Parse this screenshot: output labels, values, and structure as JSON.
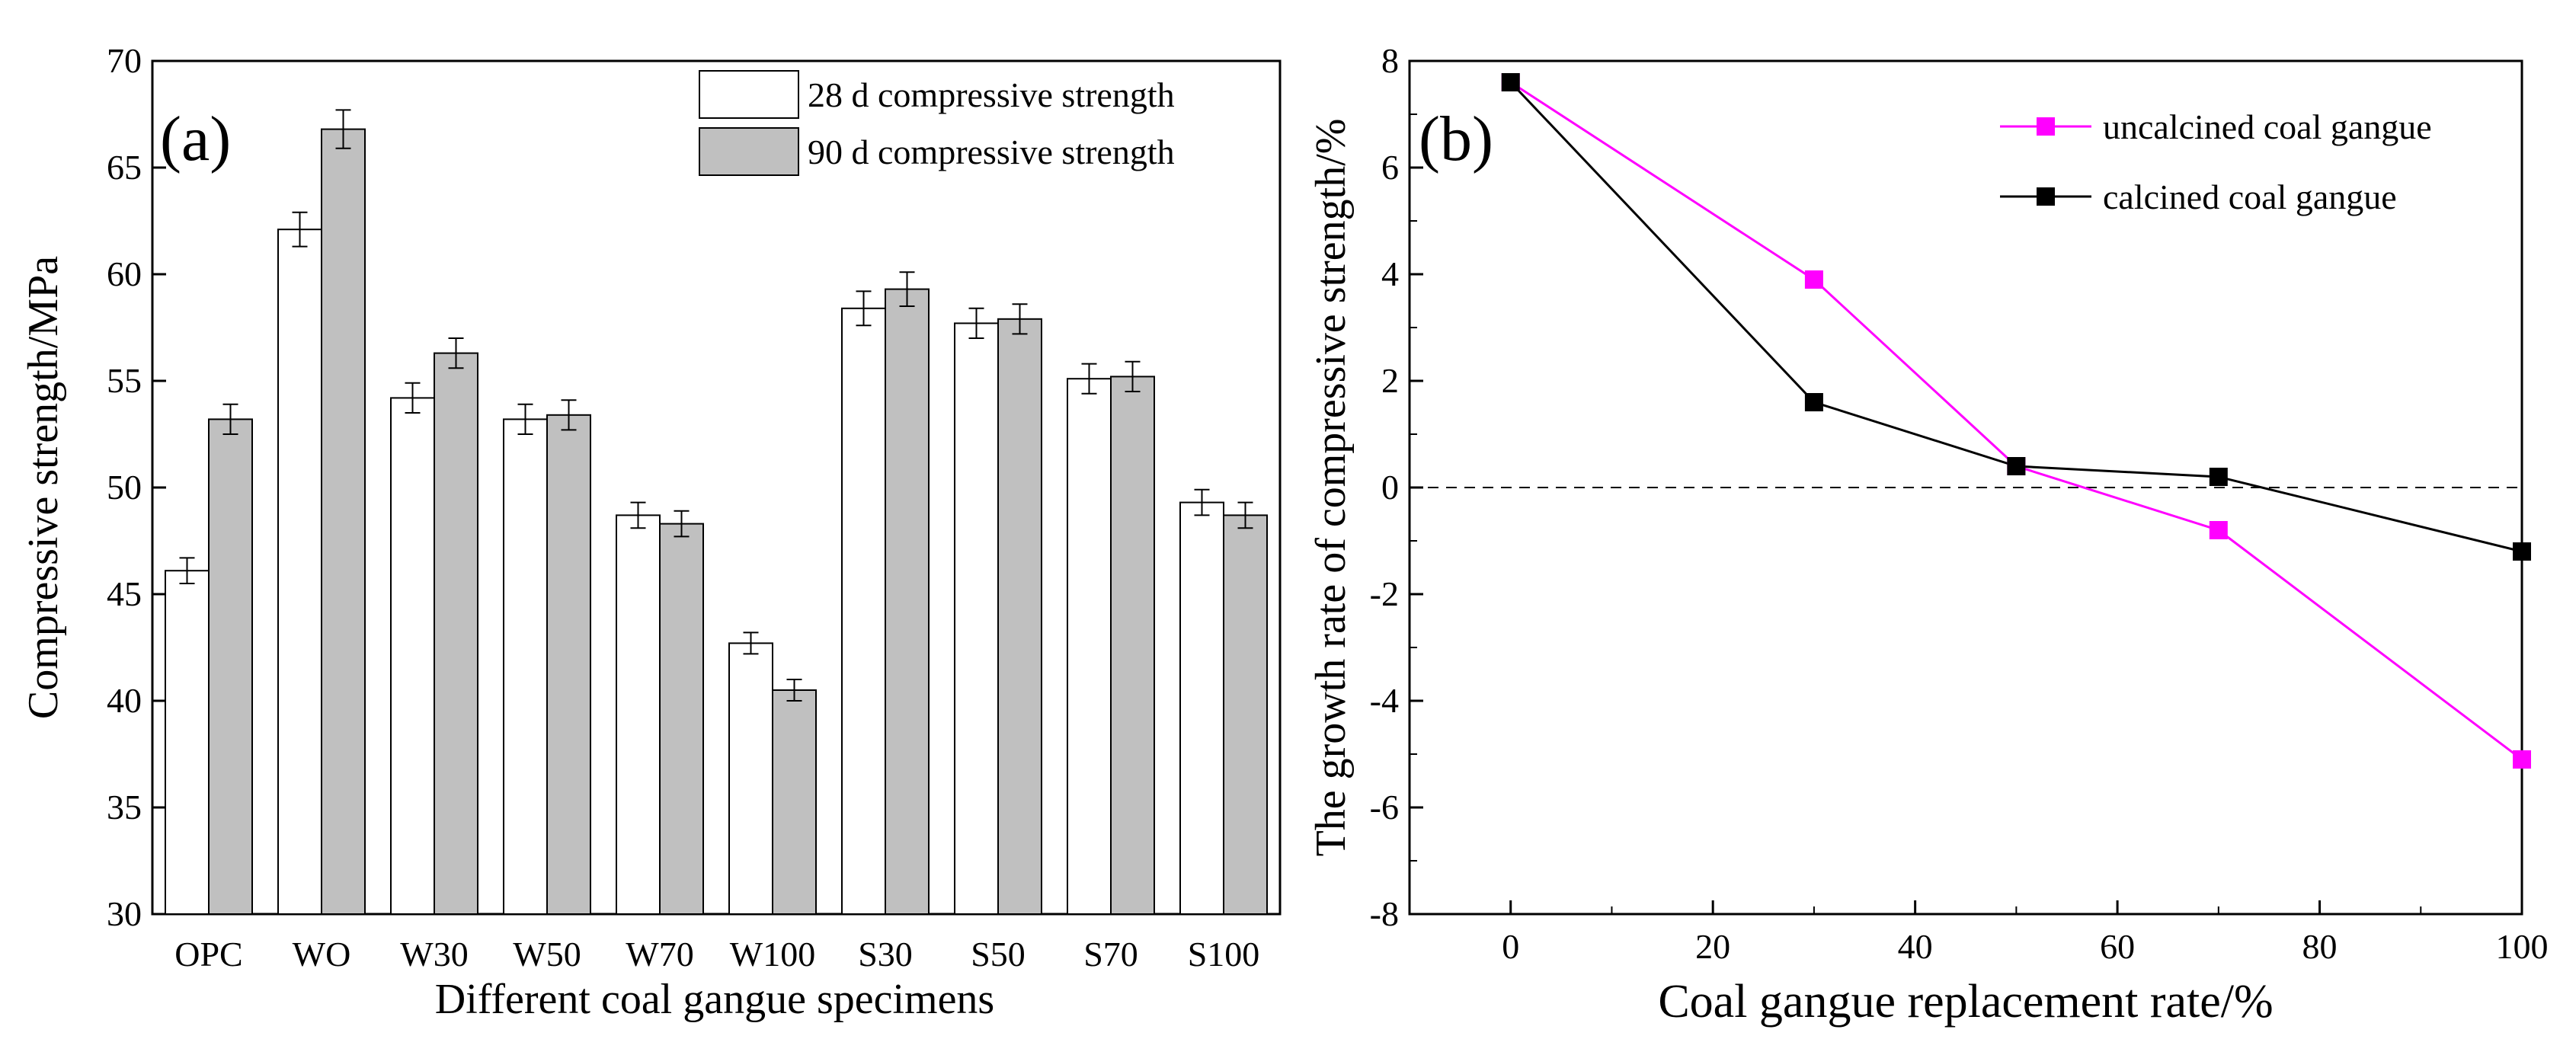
{
  "charts": {
    "a": {
      "panel_label": "(a)",
      "xlabel": "Different coal gangue specimens",
      "ylabel": "Compressive strength/MPa",
      "legend": [
        "28 d compressive strength",
        "90 d compressive strength"
      ]
    },
    "b": {
      "panel_label": "(b)",
      "xlabel": "Coal gangue replacement rate/%",
      "ylabel": "The growth rate of compressive strength/%",
      "legend": [
        "uncalcined coal gangue",
        "calcined coal gangue"
      ]
    }
  },
  "chart_data": [
    {
      "type": "bar",
      "panel": "(a)",
      "xlabel": "Different coal gangue specimens",
      "ylabel": "Compressive strength/MPa",
      "categories": [
        "OPC",
        "WO",
        "W30",
        "W50",
        "W70",
        "W100",
        "S30",
        "S50",
        "S70",
        "S100"
      ],
      "series": [
        {
          "name": "28 d compressive strength",
          "color": "#ffffff",
          "values": [
            46.1,
            62.1,
            54.2,
            53.2,
            48.7,
            42.7,
            58.4,
            57.7,
            55.1,
            49.3
          ],
          "errors": [
            0.6,
            0.8,
            0.7,
            0.7,
            0.6,
            0.5,
            0.8,
            0.7,
            0.7,
            0.6
          ]
        },
        {
          "name": "90 d compressive strength",
          "color": "#c0c0c0",
          "values": [
            53.2,
            66.8,
            56.3,
            53.4,
            48.3,
            40.5,
            59.3,
            57.9,
            55.2,
            48.7
          ],
          "errors": [
            0.7,
            0.9,
            0.7,
            0.7,
            0.6,
            0.5,
            0.8,
            0.7,
            0.7,
            0.6
          ]
        }
      ],
      "ylim": [
        30,
        70
      ],
      "yticks": [
        30,
        35,
        40,
        45,
        50,
        55,
        60,
        65,
        70
      ],
      "legend_position": "top-right",
      "grid": false
    },
    {
      "type": "line",
      "panel": "(b)",
      "xlabel": "Coal gangue replacement rate/%",
      "ylabel": "The growth rate of compressive strength/%",
      "x": [
        0,
        30,
        50,
        70,
        100
      ],
      "series": [
        {
          "name": "uncalcined coal gangue",
          "color": "#ff00ff",
          "values": [
            7.6,
            3.9,
            0.4,
            -0.8,
            -5.1
          ]
        },
        {
          "name": "calcined coal gangue",
          "color": "#000000",
          "values": [
            7.6,
            1.6,
            0.4,
            0.2,
            -1.2
          ]
        }
      ],
      "reference_line": {
        "y": 0,
        "style": "dashed"
      },
      "xlim": [
        -10,
        100
      ],
      "ylim": [
        -8,
        8
      ],
      "xticks": [
        0,
        20,
        40,
        60,
        80,
        100
      ],
      "yticks": [
        -8,
        -6,
        -4,
        -2,
        0,
        2,
        4,
        6,
        8
      ],
      "legend_position": "top-right",
      "grid": false
    }
  ]
}
